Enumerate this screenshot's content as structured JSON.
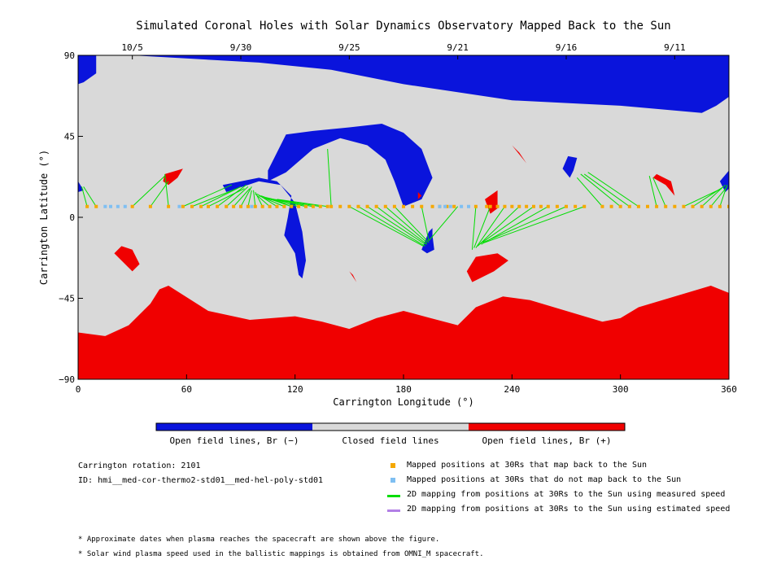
{
  "chart_data": {
    "type": "heatmap",
    "title": "Simulated Coronal Holes with Solar Dynamics Observatory Mapped Back to the Sun",
    "xlabel": "Carrington Longitude (°)",
    "ylabel": "Carrington Latitude (°)",
    "xlim": [
      0,
      360
    ],
    "ylim": [
      -90,
      90
    ],
    "x_ticks": [
      "0",
      "60",
      "120",
      "180",
      "240",
      "300",
      "360"
    ],
    "x_tick_values": [
      0,
      60,
      120,
      180,
      240,
      300,
      360
    ],
    "y_ticks": [
      "90",
      "45",
      "0",
      "−45",
      "−90"
    ],
    "y_tick_values": [
      90,
      45,
      0,
      -45,
      -90
    ],
    "top_axis_dates": [
      {
        "label": "10/5",
        "lon": 30
      },
      {
        "label": "9/30",
        "lon": 90
      },
      {
        "label": "9/25",
        "lon": 150
      },
      {
        "label": "9/21",
        "lon": 210
      },
      {
        "label": "9/16",
        "lon": 270
      },
      {
        "label": "9/11",
        "lon": 330
      }
    ],
    "colors": {
      "open_negative": "#0a14dc",
      "closed": "#d9d9d9",
      "open_positive": "#f00000",
      "mapped": "#f5a800",
      "unmapped": "#7fbff2",
      "measured_line": "#00dd00",
      "estimated_line": "#b27fe6"
    },
    "colorbar_labels": [
      "Open field lines, Br (−)",
      "Closed field lines",
      "Open field lines, Br (+)"
    ],
    "coronal_holes_negative": [
      [
        [
          0,
          90
        ],
        [
          360,
          90
        ],
        [
          360,
          67
        ],
        [
          353,
          62
        ],
        [
          345,
          58
        ],
        [
          300,
          62
        ],
        [
          240,
          65
        ],
        [
          180,
          74
        ],
        [
          140,
          82
        ],
        [
          100,
          86
        ],
        [
          30,
          90
        ],
        [
          0,
          90
        ]
      ],
      [
        [
          0,
          90
        ],
        [
          10,
          90
        ],
        [
          10,
          80
        ],
        [
          3,
          75
        ],
        [
          0,
          74
        ]
      ],
      [
        [
          105,
          26
        ],
        [
          115,
          46
        ],
        [
          130,
          48
        ],
        [
          150,
          50
        ],
        [
          168,
          52
        ],
        [
          180,
          47
        ],
        [
          190,
          38
        ],
        [
          196,
          22
        ],
        [
          190,
          10
        ],
        [
          180,
          6
        ],
        [
          175,
          20
        ],
        [
          170,
          32
        ],
        [
          160,
          40
        ],
        [
          145,
          44
        ],
        [
          130,
          38
        ],
        [
          115,
          25
        ],
        [
          105,
          20
        ]
      ],
      [
        [
          80,
          18
        ],
        [
          100,
          22
        ],
        [
          110,
          20
        ],
        [
          118,
          12
        ],
        [
          116,
          0
        ],
        [
          114,
          -10
        ],
        [
          120,
          -20
        ],
        [
          122,
          -32
        ],
        [
          124,
          -34
        ],
        [
          126,
          -24
        ],
        [
          124,
          -8
        ],
        [
          120,
          8
        ],
        [
          112,
          18
        ],
        [
          100,
          20
        ],
        [
          82,
          14
        ]
      ],
      [
        [
          196,
          -10
        ],
        [
          197,
          -18
        ],
        [
          193,
          -20
        ],
        [
          190,
          -18
        ],
        [
          194,
          -8
        ],
        [
          196,
          -6
        ]
      ],
      [
        [
          276,
          33
        ],
        [
          274,
          26
        ],
        [
          272,
          22
        ],
        [
          268,
          27
        ],
        [
          271,
          34
        ]
      ],
      [
        [
          360,
          26
        ],
        [
          355,
          20
        ],
        [
          358,
          14
        ],
        [
          360,
          16
        ]
      ],
      [
        [
          0,
          20
        ],
        [
          3,
          15
        ],
        [
          0,
          14
        ]
      ]
    ],
    "coronal_holes_positive": [
      [
        [
          0,
          -90
        ],
        [
          360,
          -90
        ],
        [
          360,
          -42
        ],
        [
          350,
          -38
        ],
        [
          330,
          -44
        ],
        [
          310,
          -50
        ],
        [
          300,
          -56
        ],
        [
          290,
          -58
        ],
        [
          270,
          -52
        ],
        [
          250,
          -46
        ],
        [
          235,
          -44
        ],
        [
          220,
          -50
        ],
        [
          210,
          -60
        ],
        [
          195,
          -56
        ],
        [
          180,
          -52
        ],
        [
          165,
          -56
        ],
        [
          150,
          -62
        ],
        [
          135,
          -58
        ],
        [
          120,
          -55
        ],
        [
          95,
          -57
        ],
        [
          72,
          -52
        ],
        [
          50,
          -38
        ],
        [
          45,
          -40
        ],
        [
          40,
          -48
        ],
        [
          28,
          -60
        ],
        [
          15,
          -66
        ],
        [
          0,
          -64
        ]
      ],
      [
        [
          240,
          40
        ],
        [
          248,
          30
        ],
        [
          244,
          36
        ]
      ],
      [
        [
          48,
          24
        ],
        [
          58,
          27
        ],
        [
          55,
          22
        ],
        [
          50,
          18
        ],
        [
          47,
          20
        ]
      ],
      [
        [
          320,
          24
        ],
        [
          328,
          20
        ],
        [
          330,
          12
        ],
        [
          325,
          18
        ],
        [
          318,
          22
        ]
      ],
      [
        [
          20,
          -20
        ],
        [
          30,
          -30
        ],
        [
          34,
          -26
        ],
        [
          30,
          -18
        ],
        [
          24,
          -16
        ]
      ],
      [
        [
          215,
          -30
        ],
        [
          220,
          -22
        ],
        [
          232,
          -20
        ],
        [
          238,
          -24
        ],
        [
          230,
          -30
        ],
        [
          218,
          -36
        ]
      ],
      [
        [
          225,
          10
        ],
        [
          232,
          15
        ],
        [
          232,
          5
        ],
        [
          228,
          2
        ]
      ],
      [
        [
          150,
          -30
        ],
        [
          154,
          -36
        ],
        [
          152,
          -32
        ]
      ],
      [
        [
          188,
          10
        ],
        [
          190,
          12
        ],
        [
          188,
          14
        ]
      ]
    ],
    "mapped_positions_30Rs_map_back": {
      "lat": 6,
      "lon": [
        5,
        10,
        30,
        40,
        50,
        58,
        63,
        68,
        72,
        77,
        82,
        86,
        90,
        94,
        98,
        102,
        106,
        110,
        114,
        118,
        122,
        126,
        130,
        134,
        138,
        140,
        145,
        150,
        155,
        160,
        165,
        170,
        175,
        180,
        185,
        190,
        196,
        200,
        204,
        208,
        220,
        226,
        228,
        232,
        236,
        240,
        244,
        248,
        252,
        256,
        260,
        265,
        270,
        275,
        280,
        290,
        295,
        300,
        305,
        310,
        315,
        320,
        325,
        330,
        335,
        340,
        345,
        350,
        355,
        360
      ]
    },
    "mapped_positions_30Rs_no_map_back": {
      "lat": 6,
      "lon": [
        15,
        18,
        22,
        26,
        56,
        96,
        200,
        203,
        206,
        212,
        216
      ]
    },
    "mappings_2d_measured_speed": [
      [
        5,
        6,
        2,
        17
      ],
      [
        10,
        6,
        3,
        17
      ],
      [
        30,
        6,
        48,
        23
      ],
      [
        40,
        6,
        50,
        20
      ],
      [
        50,
        6,
        48,
        24
      ],
      [
        58,
        6,
        85,
        18
      ],
      [
        63,
        6,
        88,
        16
      ],
      [
        68,
        6,
        90,
        17
      ],
      [
        72,
        6,
        92,
        16
      ],
      [
        77,
        6,
        93,
        18
      ],
      [
        82,
        6,
        94,
        17
      ],
      [
        86,
        6,
        95,
        16
      ],
      [
        90,
        6,
        96,
        17
      ],
      [
        94,
        6,
        96,
        15
      ],
      [
        98,
        6,
        97,
        15
      ],
      [
        102,
        6,
        98,
        14
      ],
      [
        106,
        6,
        98,
        13
      ],
      [
        110,
        6,
        99,
        13
      ],
      [
        114,
        6,
        100,
        12
      ],
      [
        118,
        6,
        101,
        12
      ],
      [
        122,
        6,
        102,
        11
      ],
      [
        126,
        6,
        104,
        11
      ],
      [
        130,
        6,
        106,
        10
      ],
      [
        134,
        6,
        108,
        10
      ],
      [
        138,
        6,
        110,
        10
      ],
      [
        140,
        6,
        138,
        38
      ],
      [
        150,
        6,
        191,
        -16
      ],
      [
        155,
        6,
        192,
        -16
      ],
      [
        160,
        6,
        192,
        -15
      ],
      [
        165,
        6,
        193,
        -15
      ],
      [
        170,
        6,
        193,
        -14
      ],
      [
        175,
        6,
        194,
        -14
      ],
      [
        190,
        6,
        194,
        -13
      ],
      [
        210,
        6,
        194,
        -13
      ],
      [
        220,
        6,
        218,
        -18
      ],
      [
        228,
        6,
        219,
        -17
      ],
      [
        236,
        6,
        220,
        -17
      ],
      [
        244,
        6,
        221,
        -16
      ],
      [
        252,
        6,
        222,
        -15
      ],
      [
        260,
        6,
        223,
        -15
      ],
      [
        270,
        6,
        224,
        -14
      ],
      [
        280,
        6,
        225,
        -14
      ],
      [
        290,
        6,
        276,
        22
      ],
      [
        300,
        6,
        278,
        24
      ],
      [
        305,
        6,
        280,
        24
      ],
      [
        310,
        6,
        282,
        25
      ],
      [
        320,
        6,
        316,
        23
      ],
      [
        325,
        6,
        318,
        22
      ],
      [
        335,
        6,
        356,
        16
      ],
      [
        340,
        6,
        357,
        17
      ],
      [
        345,
        6,
        358,
        18
      ],
      [
        350,
        6,
        359,
        17
      ],
      [
        355,
        6,
        359,
        18
      ]
    ],
    "mappings_2d_estimated_speed": []
  },
  "legend": {
    "mapped": "Mapped positions at 30Rs that map back to the Sun",
    "unmapped": "Mapped positions at 30Rs that do not map back to the Sun",
    "measured": "2D mapping from positions at 30Rs to the Sun using measured speed",
    "estimated": "2D mapping from positions at 30Rs to the Sun using estimated speed"
  },
  "info": {
    "rotation": "Carrington rotation: 2101",
    "model_id": "ID: hmi__med-cor-thermo2-std01__med-hel-poly-std01"
  },
  "notes": [
    "* Approximate dates when plasma reaches the spacecraft are shown above the figure.",
    "* Solar wind plasma speed used in the ballistic mappings is obtained from OMNI_M spacecraft."
  ]
}
